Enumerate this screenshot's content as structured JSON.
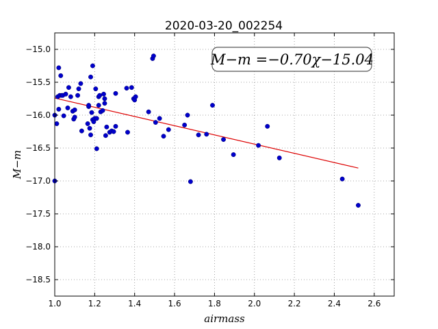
{
  "chart_data": {
    "type": "scatter",
    "title": "2020-03-20_002254",
    "xlabel": "airmass",
    "ylabel": "M−m",
    "xlim": [
      1.0,
      2.7
    ],
    "ylim": [
      -18.75,
      -14.75
    ],
    "y_inverted": true,
    "grid": true,
    "xticks": [
      1.0,
      1.2,
      1.4,
      1.6,
      1.8,
      2.0,
      2.2,
      2.4,
      2.6
    ],
    "xtick_labels": [
      "1.0",
      "1.2",
      "1.4",
      "1.6",
      "1.8",
      "2.0",
      "2.2",
      "2.4",
      "2.6"
    ],
    "yticks": [
      -15.0,
      -15.5,
      -16.0,
      -16.5,
      -17.0,
      -17.5,
      -18.0,
      -18.5
    ],
    "ytick_labels": [
      "−15.0",
      "−15.5",
      "−16.0",
      "−16.5",
      "−17.0",
      "−17.5",
      "−18.0",
      "−18.5"
    ],
    "annotation": "M−m =−0.70χ−15.04",
    "colors": {
      "points": "#0000cc",
      "fit": "#dd0000",
      "grid": "#888888"
    },
    "fit": {
      "slope": -0.7,
      "intercept": -15.04,
      "x_range": [
        1.0,
        2.52
      ]
    },
    "series": [
      {
        "points": [
          [
            1.0,
            -16.0
          ],
          [
            1.0,
            -17.0
          ],
          [
            1.01,
            -16.13
          ],
          [
            1.015,
            -15.72
          ],
          [
            1.02,
            -15.91
          ],
          [
            1.02,
            -15.28
          ],
          [
            1.025,
            -15.7
          ],
          [
            1.03,
            -15.4
          ],
          [
            1.035,
            -15.7
          ],
          [
            1.04,
            -15.7
          ],
          [
            1.045,
            -16.01
          ],
          [
            1.055,
            -15.68
          ],
          [
            1.065,
            -15.89
          ],
          [
            1.07,
            -15.58
          ],
          [
            1.08,
            -15.72
          ],
          [
            1.09,
            -15.94
          ],
          [
            1.095,
            -16.06
          ],
          [
            1.1,
            -16.03
          ],
          [
            1.1,
            -15.92
          ],
          [
            1.115,
            -15.7
          ],
          [
            1.12,
            -15.6
          ],
          [
            1.13,
            -15.52
          ],
          [
            1.135,
            -16.24
          ],
          [
            1.165,
            -16.13
          ],
          [
            1.17,
            -15.87
          ],
          [
            1.17,
            -15.85
          ],
          [
            1.175,
            -16.2
          ],
          [
            1.18,
            -15.42
          ],
          [
            1.18,
            -16.3
          ],
          [
            1.185,
            -15.96
          ],
          [
            1.19,
            -16.07
          ],
          [
            1.19,
            -15.25
          ],
          [
            1.195,
            -16.1
          ],
          [
            1.2,
            -16.05
          ],
          [
            1.205,
            -15.6
          ],
          [
            1.21,
            -16.51
          ],
          [
            1.21,
            -16.05
          ],
          [
            1.22,
            -15.85
          ],
          [
            1.22,
            -15.72
          ],
          [
            1.225,
            -15.7
          ],
          [
            1.23,
            -15.95
          ],
          [
            1.24,
            -15.93
          ],
          [
            1.245,
            -15.68
          ],
          [
            1.25,
            -15.75
          ],
          [
            1.25,
            -15.82
          ],
          [
            1.255,
            -16.31
          ],
          [
            1.26,
            -16.18
          ],
          [
            1.275,
            -16.26
          ],
          [
            1.285,
            -16.24
          ],
          [
            1.295,
            -16.25
          ],
          [
            1.305,
            -16.17
          ],
          [
            1.305,
            -15.67
          ],
          [
            1.36,
            -15.59
          ],
          [
            1.365,
            -16.26
          ],
          [
            1.385,
            -15.58
          ],
          [
            1.395,
            -15.75
          ],
          [
            1.4,
            -15.77
          ],
          [
            1.405,
            -15.72
          ],
          [
            1.47,
            -15.95
          ],
          [
            1.49,
            -15.14
          ],
          [
            1.495,
            -15.1
          ],
          [
            1.505,
            -16.11
          ],
          [
            1.525,
            -16.05
          ],
          [
            1.545,
            -16.32
          ],
          [
            1.57,
            -16.22
          ],
          [
            1.65,
            -16.15
          ],
          [
            1.665,
            -16.0
          ],
          [
            1.68,
            -17.01
          ],
          [
            1.72,
            -16.3
          ],
          [
            1.76,
            -16.29
          ],
          [
            1.79,
            -15.85
          ],
          [
            1.845,
            -16.37
          ],
          [
            1.895,
            -16.6
          ],
          [
            2.02,
            -16.46
          ],
          [
            2.065,
            -16.17
          ],
          [
            2.125,
            -16.65
          ],
          [
            2.44,
            -16.97
          ],
          [
            2.52,
            -17.37
          ]
        ]
      }
    ]
  }
}
